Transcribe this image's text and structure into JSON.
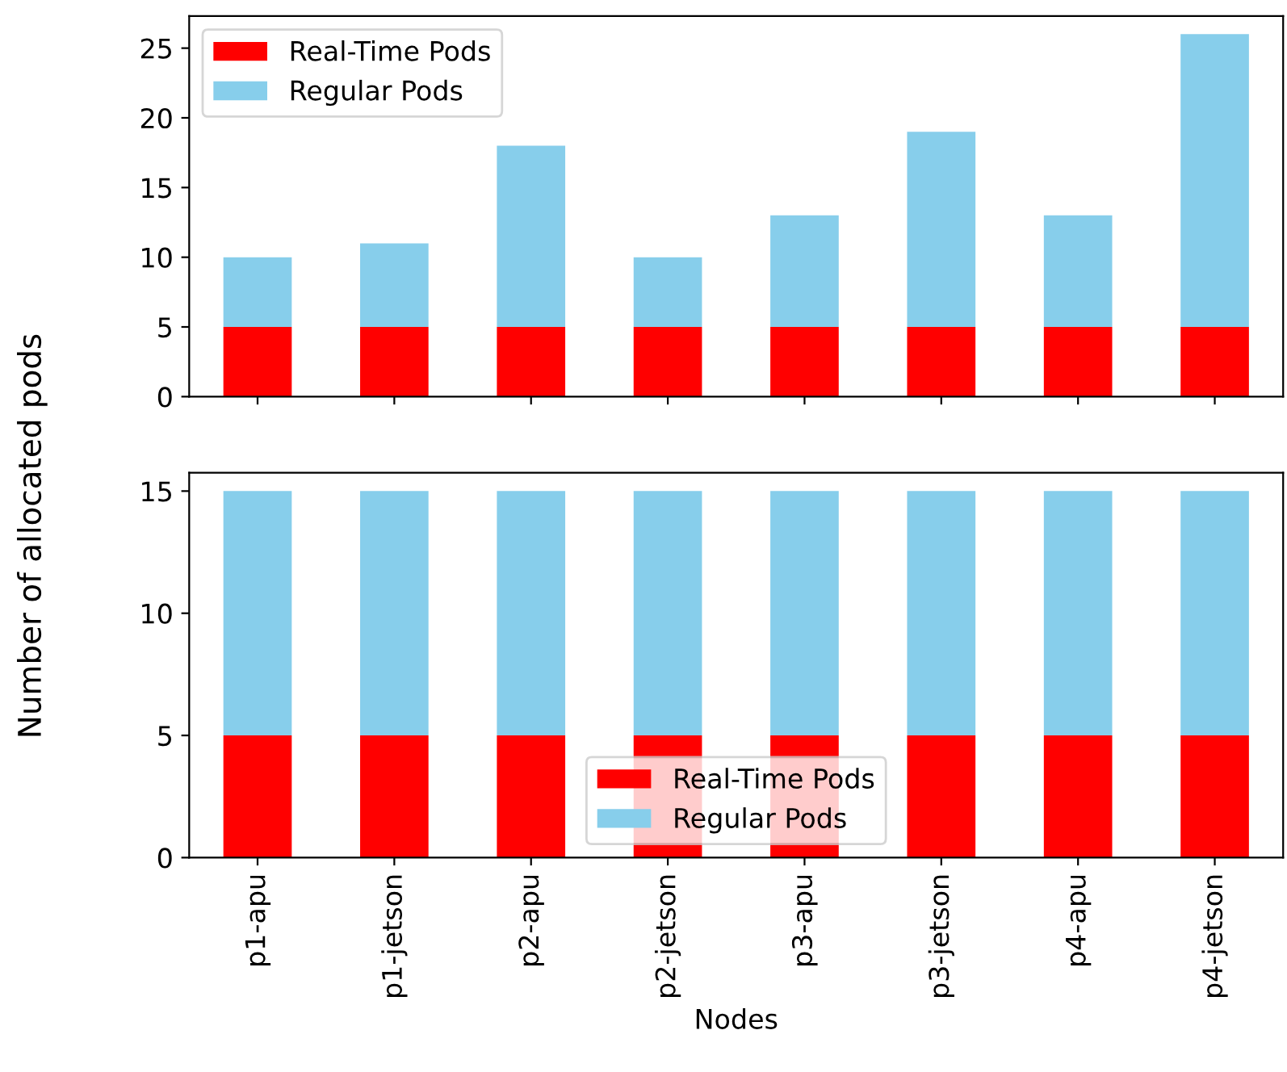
{
  "chart_data": [
    {
      "type": "bar",
      "stacked": true,
      "ylabel": "Number of allocated pods",
      "categories": [
        null,
        null,
        null,
        null,
        null,
        null,
        null,
        null
      ],
      "series": [
        {
          "name": "Real-Time Pods",
          "color": "#ff0000",
          "values": [
            5,
            5,
            5,
            5,
            5,
            5,
            5,
            5
          ]
        },
        {
          "name": "Regular Pods",
          "color": "#87ceeb",
          "values": [
            5,
            6,
            13,
            5,
            8,
            14,
            8,
            21
          ]
        }
      ],
      "ylim": [
        0,
        27.3
      ],
      "yticks": [
        0,
        5,
        10,
        15,
        20,
        25
      ],
      "legend": "top left",
      "tick_labels": "y",
      "grid": false
    },
    {
      "type": "bar",
      "stacked": true,
      "xlabel": "Nodes",
      "categories": [
        "p1-apu",
        "p1-jetson",
        "p2-apu",
        "p2-jetson",
        "p3-apu",
        "p3-jetson",
        "p4-apu",
        "p4-jetson"
      ],
      "series": [
        {
          "name": "Real-Time Pods",
          "color": "#ff0000",
          "values": [
            5,
            5,
            5,
            5,
            5,
            5,
            5,
            5
          ]
        },
        {
          "name": "Regular Pods",
          "color": "#87ceeb",
          "values": [
            10,
            10,
            10,
            10,
            10,
            10,
            10,
            10
          ]
        }
      ],
      "ylim": [
        0,
        15.75
      ],
      "yticks": [
        0,
        5,
        10,
        15
      ],
      "legend": "bottom",
      "grid": false
    }
  ]
}
